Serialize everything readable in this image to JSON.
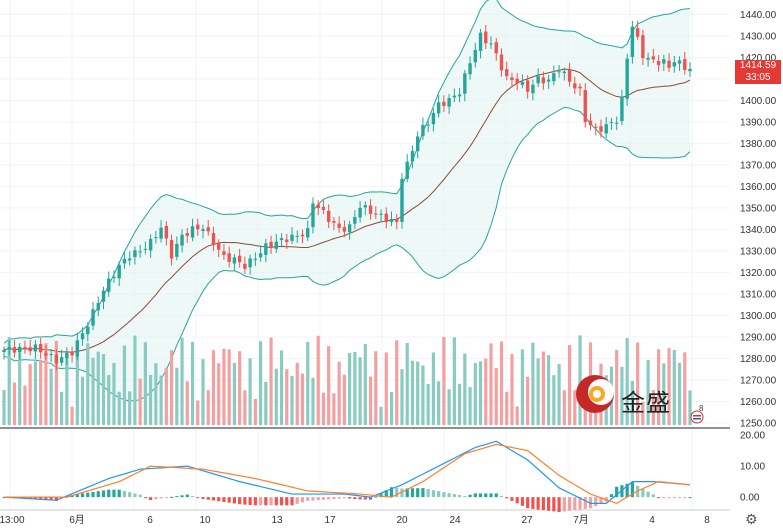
{
  "chart_data": {
    "type": "candlestick",
    "price_axis": {
      "ticks": [
        "1440.00",
        "1430.00",
        "1420.00",
        "1410.00",
        "1400.00",
        "1390.00",
        "1380.00",
        "1370.00",
        "1360.00",
        "1350.00",
        "1340.00",
        "1330.00",
        "1320.00",
        "1310.00",
        "1300.00",
        "1290.00",
        "1280.00",
        "1270.00",
        "1260.00",
        "1250.00"
      ],
      "ylim": [
        1250,
        1442
      ]
    },
    "macd_axis": {
      "ticks": [
        "20.00",
        "10.00",
        "0.00"
      ],
      "ylim": [
        -3.5,
        21
      ]
    },
    "x_labels": [
      "13:00",
      "6月",
      "6",
      "10",
      "13",
      "17",
      "20",
      "24",
      "27",
      "7月",
      "4",
      "8"
    ],
    "last_price": "1414.59",
    "countdown": "33:05",
    "close_path": [
      [
        0,
        1284
      ],
      [
        6,
        1285
      ],
      [
        10,
        1279
      ],
      [
        13,
        1283
      ],
      [
        16,
        1296
      ],
      [
        19,
        1312
      ],
      [
        22,
        1323
      ],
      [
        24,
        1328
      ],
      [
        26,
        1330
      ],
      [
        28,
        1334
      ],
      [
        30,
        1341
      ],
      [
        32,
        1328
      ],
      [
        34,
        1337
      ],
      [
        36,
        1340
      ],
      [
        38,
        1341
      ],
      [
        40,
        1334
      ],
      [
        42,
        1327
      ],
      [
        44,
        1326
      ],
      [
        46,
        1323
      ],
      [
        48,
        1327
      ],
      [
        50,
        1332
      ],
      [
        53,
        1335
      ],
      [
        56,
        1337
      ],
      [
        58,
        1339
      ],
      [
        59,
        1353
      ],
      [
        62,
        1345
      ],
      [
        64,
        1340
      ],
      [
        66,
        1341
      ],
      [
        68,
        1351
      ],
      [
        71,
        1347
      ],
      [
        73,
        1345
      ],
      [
        75,
        1343
      ],
      [
        76,
        1365
      ],
      [
        77,
        1370
      ],
      [
        79,
        1384
      ],
      [
        81,
        1390
      ],
      [
        83,
        1398
      ],
      [
        85,
        1400
      ],
      [
        87,
        1404
      ],
      [
        89,
        1418
      ],
      [
        91,
        1430
      ],
      [
        93,
        1426
      ],
      [
        94,
        1421
      ],
      [
        96,
        1410
      ],
      [
        98,
        1409
      ],
      [
        100,
        1405
      ],
      [
        102,
        1410
      ],
      [
        104,
        1409
      ],
      [
        106,
        1415
      ],
      [
        108,
        1409
      ],
      [
        110,
        1404
      ],
      [
        111,
        1391
      ],
      [
        113,
        1386
      ],
      [
        115,
        1388
      ],
      [
        117,
        1391
      ],
      [
        118,
        1400
      ],
      [
        119,
        1420
      ],
      [
        120,
        1435
      ],
      [
        121,
        1428
      ],
      [
        122,
        1421
      ],
      [
        124,
        1418
      ],
      [
        126,
        1418
      ],
      [
        127,
        1415
      ],
      [
        128,
        1419
      ],
      [
        130,
        1415
      ],
      [
        131,
        1414.59
      ]
    ],
    "macd_series": [
      {
        "name": "MACD",
        "points": [
          [
            0,
            0
          ],
          [
            10,
            -1
          ],
          [
            20,
            6
          ],
          [
            26,
            9
          ],
          [
            35,
            10
          ],
          [
            45,
            5
          ],
          [
            55,
            1
          ],
          [
            65,
            1
          ],
          [
            70,
            0
          ],
          [
            76,
            4
          ],
          [
            83,
            10
          ],
          [
            90,
            16
          ],
          [
            94,
            18
          ],
          [
            100,
            12
          ],
          [
            106,
            3
          ],
          [
            112,
            -2
          ],
          [
            115,
            -2
          ],
          [
            120,
            5
          ],
          [
            124,
            5
          ],
          [
            131,
            4
          ]
        ]
      },
      {
        "name": "Signal",
        "points": [
          [
            0,
            0
          ],
          [
            12,
            0
          ],
          [
            22,
            5
          ],
          [
            28,
            10
          ],
          [
            38,
            9
          ],
          [
            48,
            6
          ],
          [
            58,
            2
          ],
          [
            68,
            1
          ],
          [
            74,
            0
          ],
          [
            80,
            5
          ],
          [
            88,
            14
          ],
          [
            94,
            17
          ],
          [
            100,
            15
          ],
          [
            106,
            7
          ],
          [
            112,
            1
          ],
          [
            117,
            -2
          ],
          [
            121,
            2
          ],
          [
            125,
            5
          ],
          [
            131,
            4
          ]
        ]
      }
    ],
    "colors": {
      "up": "#26a69a",
      "down": "#ef5350",
      "band_line": "#26a69a",
      "band_fill": "#e0f2f1",
      "basis": "#8d4b3a",
      "macd": "#2196f3",
      "signal": "#ff7f2a",
      "vol_up": "#89cbc1",
      "vol_down": "#f3a0a0",
      "grid": "#f0f3fa"
    }
  },
  "logo": {
    "text": "金盛"
  },
  "badge": {
    "count": "8"
  }
}
